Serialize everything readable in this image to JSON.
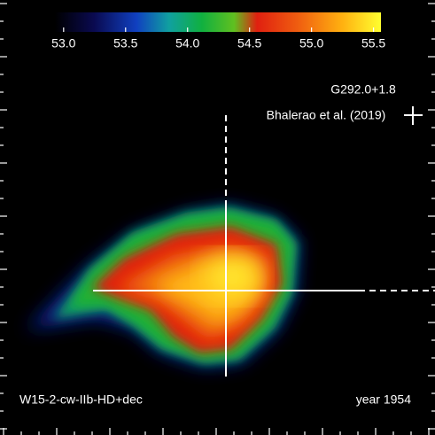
{
  "chart_data": {
    "type": "image",
    "colorbar": {
      "clim": [
        52.93,
        55.56
      ],
      "ticks": [
        {
          "value": 53,
          "label": "53.0"
        },
        {
          "value": 53.5,
          "label": "53.5"
        },
        {
          "value": 54,
          "label": "54.0"
        },
        {
          "value": 54.5,
          "label": "54.5"
        },
        {
          "value": 55,
          "label": "55.0"
        },
        {
          "value": 55.5,
          "label": "55.5"
        }
      ]
    },
    "annotations": {
      "object": "G292.0+1.8",
      "reference": "Bhalerao et al. (2019)",
      "model": "W15-2-cw-IIb-HD+dec",
      "epoch": "year 1954"
    }
  }
}
